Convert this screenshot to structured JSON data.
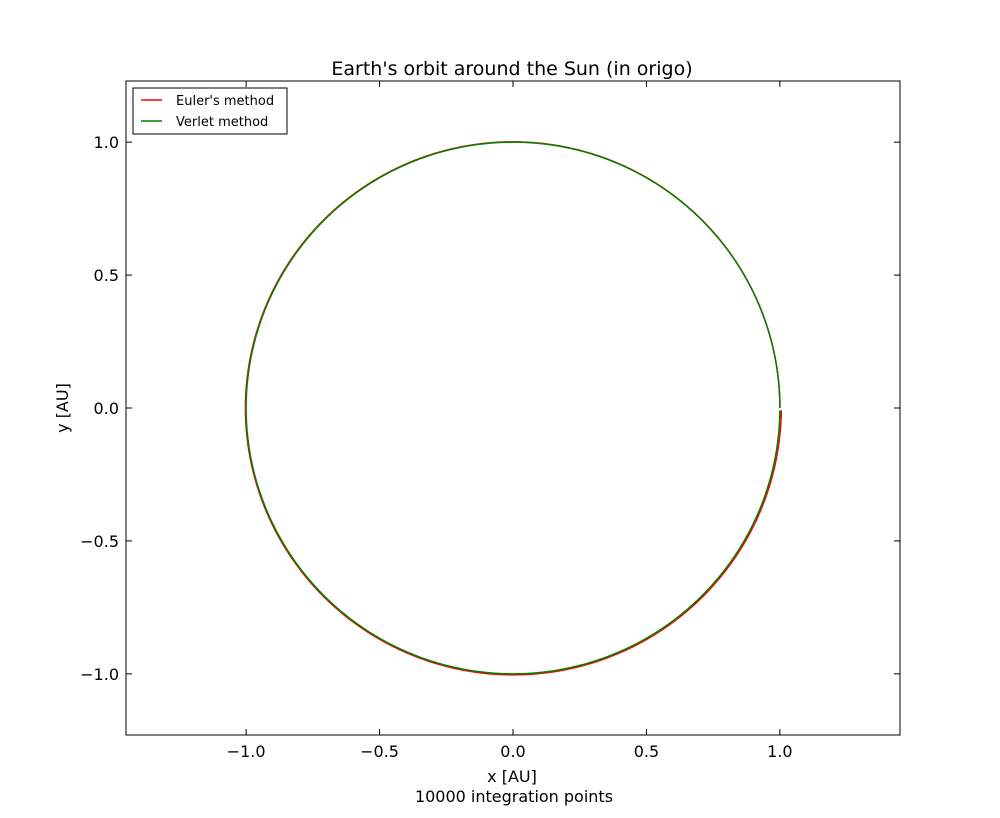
{
  "chart_data": {
    "type": "line",
    "title": "Earth's orbit around the Sun (in origo)",
    "xlabel": "x [AU]",
    "ylabel": "y [AU]",
    "subtitle": "10000 integration points",
    "xlim": [
      -1.45,
      1.45
    ],
    "ylim": [
      -1.23,
      1.23
    ],
    "xticks": [
      -1.0,
      -0.5,
      0.0,
      0.5,
      1.0
    ],
    "xtick_labels": [
      "−1.0",
      "−0.5",
      "0.0",
      "0.5",
      "1.0"
    ],
    "yticks": [
      -1.0,
      -0.5,
      0.0,
      0.5,
      1.0
    ],
    "ytick_labels": [
      "−1.0",
      "−0.5",
      "0.0",
      "0.5",
      "1.0"
    ],
    "grid": false,
    "legend_position": "top-left",
    "series": [
      {
        "name": "Euler's method",
        "color": "#ff0000",
        "orbit": {
          "start": [
            1.0,
            0.0
          ],
          "radius_start": 1.0,
          "radius_end": 1.005,
          "turns": 1,
          "end": [
            1.005,
            -0.04
          ]
        }
      },
      {
        "name": "Verlet method",
        "color": "#008000",
        "orbit": {
          "start": [
            1.0,
            0.0
          ],
          "radius_start": 1.0,
          "radius_end": 1.0,
          "turns": 1,
          "end": [
            1.0,
            -0.03
          ]
        }
      }
    ]
  }
}
